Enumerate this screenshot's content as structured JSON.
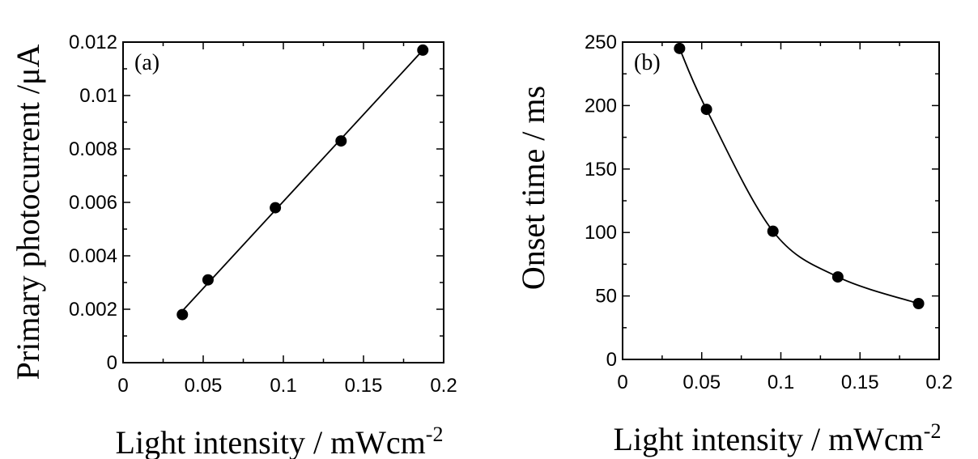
{
  "chart_data": [
    {
      "type": "scatter",
      "panel_label": "(a)",
      "xlabel": "Light intensity / mWcm",
      "xlabel_sup": "-2",
      "ylabel": "Primary photocurrent /μA",
      "xlim": [
        0,
        0.2
      ],
      "ylim": [
        0,
        0.012
      ],
      "xticks": [
        "0",
        "0.05",
        "0.1",
        "0.15",
        "0.2"
      ],
      "yticks": [
        "0",
        "0.002",
        "0.004",
        "0.006",
        "0.008",
        "0.01",
        "0.012"
      ],
      "fit": "linear",
      "x": [
        0.037,
        0.053,
        0.095,
        0.136,
        0.187
      ],
      "y": [
        0.0018,
        0.0031,
        0.0058,
        0.0083,
        0.0117
      ],
      "grid": false
    },
    {
      "type": "scatter",
      "panel_label": "(b)",
      "xlabel": "Light intensity / mWcm",
      "xlabel_sup": "-2",
      "ylabel": "Onset time / ms",
      "xlim": [
        0,
        0.2
      ],
      "ylim": [
        0,
        250
      ],
      "xticks": [
        "0",
        "0.05",
        "0.1",
        "0.15",
        "0.2"
      ],
      "yticks": [
        "0",
        "50",
        "100",
        "150",
        "200",
        "250"
      ],
      "fit": "smooth",
      "x": [
        0.036,
        0.053,
        0.095,
        0.136,
        0.187
      ],
      "y": [
        245,
        197,
        101,
        65,
        44
      ],
      "grid": false
    }
  ]
}
